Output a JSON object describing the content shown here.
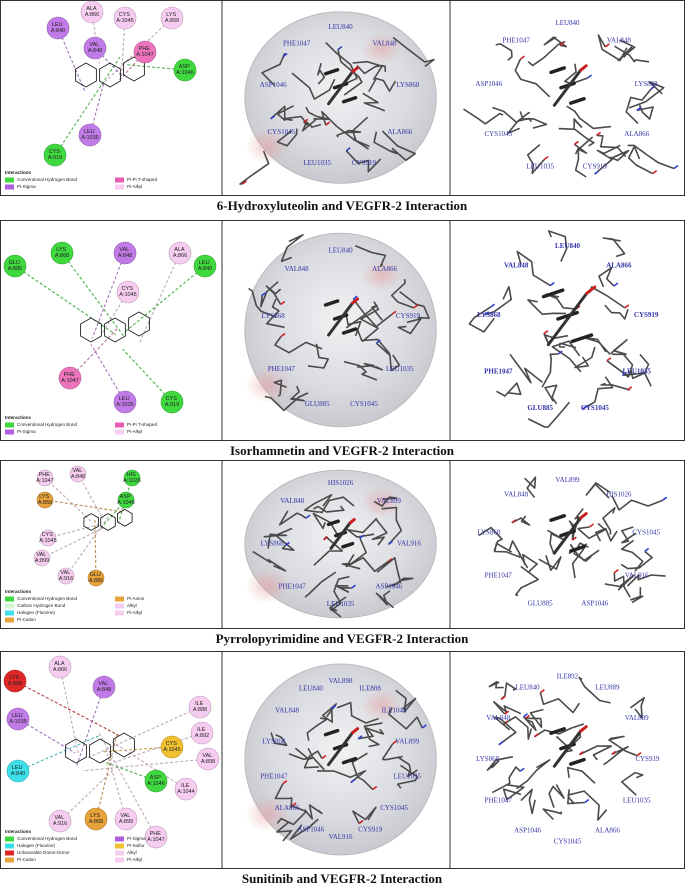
{
  "figures": [
    {
      "caption": "6-Hydroxyluteolin and VEGFR-2 Interaction",
      "diagram": {
        "residues": [
          {
            "label": "LEU A:840",
            "color": "#c17be8"
          },
          {
            "label": "ALA A:866",
            "color": "#f6cdf0"
          },
          {
            "label": "CYS A:1045",
            "color": "#f6cdf0"
          },
          {
            "label": "LYS A:868",
            "color": "#f6cdf0"
          },
          {
            "label": "VAL A:848",
            "color": "#c17be8"
          },
          {
            "label": "PHE A:1047",
            "color": "#ec74bd"
          },
          {
            "label": "ASP A:1046",
            "color": "#3fd83f"
          },
          {
            "label": "LEU A:1035",
            "color": "#c17be8"
          },
          {
            "label": "CYS A:919",
            "color": "#3fd83f"
          }
        ],
        "legend": {
          "title": "Interactions",
          "items": [
            {
              "label": "Conventional Hydrogen Bond",
              "color": "#3fd83f"
            },
            {
              "label": "Pi-Sigma",
              "color": "#b05ee0"
            },
            {
              "label": "Pi-Pi T-shaped",
              "color": "#e85cb0"
            },
            {
              "label": "Pi-Alkyl",
              "color": "#f6cdf0"
            }
          ]
        }
      },
      "surface_view": {
        "labels": [
          "LEU840",
          "VAL848",
          "LYS868",
          "ALA866",
          "CYS919",
          "LEU1035",
          "CYS1045",
          "ASP1046",
          "PHE1047"
        ]
      },
      "stick_view": {
        "labels": [
          "LEU840",
          "VAL848",
          "LYS868",
          "ALA866",
          "CYS919",
          "LEU1035",
          "CYS1045",
          "ASP1046",
          "PHE1047"
        ]
      }
    },
    {
      "caption": "Isorhamnetin and VEGFR-2 Interaction",
      "diagram": {
        "residues": [
          {
            "label": "GLU A:885",
            "color": "#3fd83f"
          },
          {
            "label": "LYS A:868",
            "color": "#3fd83f"
          },
          {
            "label": "VAL A:848",
            "color": "#c17be8"
          },
          {
            "label": "ALA A:866",
            "color": "#f6cdf0"
          },
          {
            "label": "LEU A:840",
            "color": "#3fd83f"
          },
          {
            "label": "CYS A:1045",
            "color": "#f6cdf0"
          },
          {
            "label": "PHE A:1047",
            "color": "#ec74bd"
          },
          {
            "label": "LEU A:1035",
            "color": "#c17be8"
          },
          {
            "label": "CYS A:919",
            "color": "#3fd83f"
          }
        ],
        "legend": {
          "title": "Interactions",
          "items": [
            {
              "label": "Conventional Hydrogen Bond",
              "color": "#3fd83f"
            },
            {
              "label": "Pi-Sigma",
              "color": "#b05ee0"
            },
            {
              "label": "Pi-Pi T-shaped",
              "color": "#e85cb0"
            },
            {
              "label": "Pi-Alkyl",
              "color": "#f6cdf0"
            }
          ]
        }
      },
      "surface_view": {
        "labels": [
          "LEU840",
          "ALA866",
          "CYS919",
          "LEU1035",
          "CYS1045",
          "GLU885",
          "PHE1047",
          "LYS868",
          "VAL848"
        ]
      },
      "stick_view": {
        "labels": [
          "LEU840",
          "ALA866",
          "CYS919",
          "LEU1035",
          "CYS1045",
          "GLU885",
          "PHE1047",
          "LYS868",
          "VAL848"
        ]
      }
    },
    {
      "caption": "Pyrrolopyrimidine and VEGFR-2 Interaction",
      "diagram": {
        "residues": [
          {
            "label": "PHE A:1047",
            "color": "#f6cdf0"
          },
          {
            "label": "VAL A:848",
            "color": "#f6cdf0"
          },
          {
            "label": "HIS A:1026",
            "color": "#3fd83f"
          },
          {
            "label": "LYS A:868",
            "color": "#e8a23a"
          },
          {
            "label": "ASP A:1046",
            "color": "#3fd83f"
          },
          {
            "label": "CYS A:1045",
            "color": "#f6cdf0"
          },
          {
            "label": "VAL A:899",
            "color": "#f6cdf0"
          },
          {
            "label": "VAL A:916",
            "color": "#f6cdf0"
          },
          {
            "label": "GLU A:885",
            "color": "#e8a23a"
          }
        ],
        "legend": {
          "title": "Interactions",
          "items": [
            {
              "label": "Conventional Hydrogen Bond",
              "color": "#3fd83f"
            },
            {
              "label": "Carbon Hydrogen Bond",
              "color": "#d2f5d2"
            },
            {
              "label": "Halogen (Fluorine)",
              "color": "#3de0e8"
            },
            {
              "label": "Pi-Cation",
              "color": "#e8a23a"
            },
            {
              "label": "Pi-Anion",
              "color": "#e8a23a"
            },
            {
              "label": "Alkyl",
              "color": "#f6cdf0"
            },
            {
              "label": "Pi-Alkyl",
              "color": "#f6cdf0"
            }
          ]
        }
      },
      "surface_view": {
        "labels": [
          "HIS1026",
          "VAL899",
          "VAL916",
          "ASP1046",
          "LEU1035",
          "PHE1047",
          "LYS868",
          "VAL848"
        ]
      },
      "stick_view": {
        "labels": [
          "VAL899",
          "HIS1026",
          "CYS1045",
          "VAL916",
          "ASP1046",
          "GLU885",
          "PHE1047",
          "LYS868",
          "VAL848"
        ]
      }
    },
    {
      "caption": "Sunitinib and VEGFR-2 Interaction",
      "diagram": {
        "residues": [
          {
            "label": "ALA A:866",
            "color": "#f6cdf0"
          },
          {
            "label": "LYS A:868",
            "color": "#e02828"
          },
          {
            "label": "VAL A:848",
            "color": "#c17be8"
          },
          {
            "label": "LEU A:1035",
            "color": "#c17be8"
          },
          {
            "label": "LEU A:840",
            "color": "#3de0e8"
          },
          {
            "label": "CYS A:1045",
            "color": "#f0c030"
          },
          {
            "label": "ILE A:888",
            "color": "#f6cdf0"
          },
          {
            "label": "ILE A:892",
            "color": "#f6cdf0"
          },
          {
            "label": "VAL A:898",
            "color": "#f6cdf0"
          },
          {
            "label": "ILE A:1044",
            "color": "#f6cdf0"
          },
          {
            "label": "ASP A:1046",
            "color": "#3fd83f"
          },
          {
            "label": "VAL A:916",
            "color": "#f6cdf0"
          },
          {
            "label": "LYS A:868",
            "color": "#e8a23a"
          },
          {
            "label": "VAL A:899",
            "color": "#f6cdf0"
          },
          {
            "label": "PHE A:1047",
            "color": "#f6cdf0"
          }
        ],
        "legend": {
          "title": "Interactions",
          "items": [
            {
              "label": "Conventional Hydrogen Bond",
              "color": "#3fd83f"
            },
            {
              "label": "Halogen (Fluorine)",
              "color": "#3de0e8"
            },
            {
              "label": "Unfavorable Donor-Donor",
              "color": "#e02828"
            },
            {
              "label": "Pi-Cation",
              "color": "#e8a23a"
            },
            {
              "label": "Pi-Sigma",
              "color": "#b05ee0"
            },
            {
              "label": "Pi-Sulfur",
              "color": "#f0c030"
            },
            {
              "label": "Alkyl",
              "color": "#f6cdf0"
            },
            {
              "label": "Pi-Alkyl",
              "color": "#f6cdf0"
            }
          ]
        }
      },
      "surface_view": {
        "labels": [
          "VAL898",
          "ILE888",
          "ILE1044",
          "VAL899",
          "LEU1035",
          "CYS1045",
          "CYS919",
          "VAL916",
          "ASP1046",
          "ALA866",
          "PHE1047",
          "LYS868",
          "VAL848",
          "LEU840"
        ]
      },
      "stick_view": {
        "labels": [
          "ILE892",
          "LEU889",
          "VAL899",
          "CYS919",
          "LEU1035",
          "ALA866",
          "CYS1045",
          "ASP1046",
          "PHE1047",
          "LYS868",
          "VAL848",
          "LEU840"
        ]
      }
    }
  ]
}
